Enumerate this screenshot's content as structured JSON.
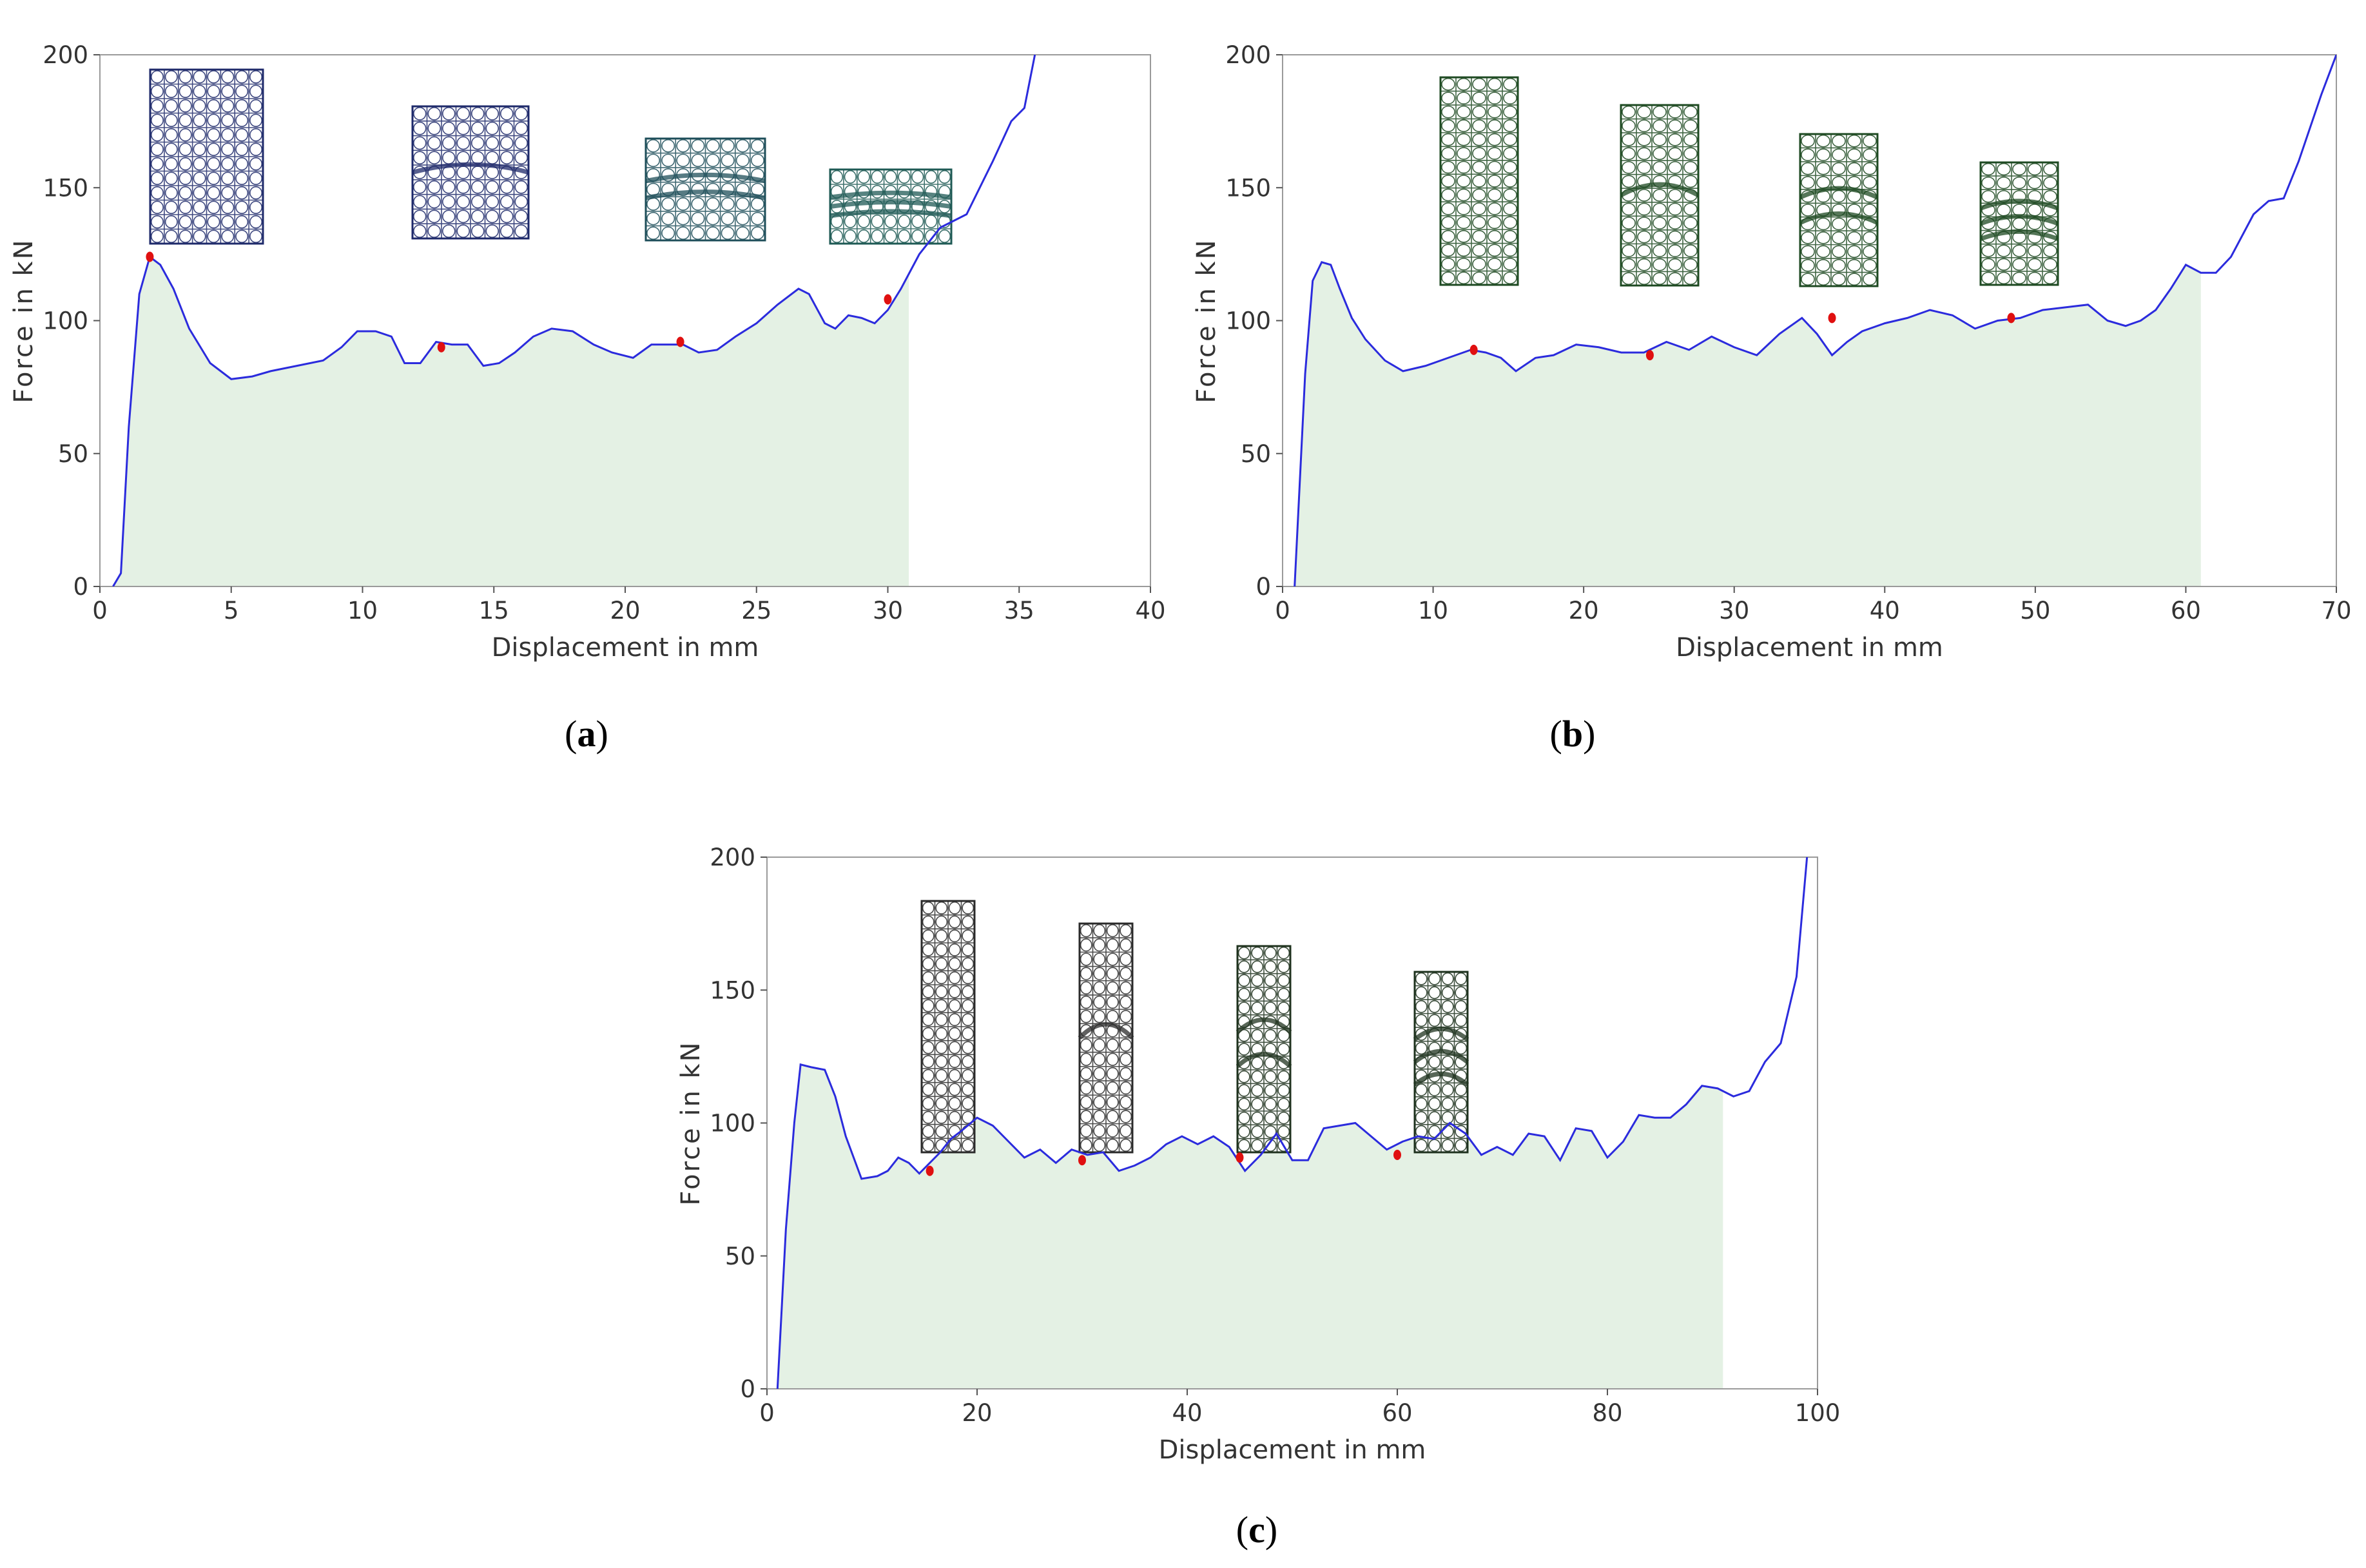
{
  "chart_data": [
    {
      "type": "area",
      "panel_label": "a",
      "xlabel": "Displacement in mm",
      "ylabel": "Force in kN",
      "xlim": [
        0,
        40
      ],
      "ylim": [
        0,
        200
      ],
      "xticks": [
        0,
        5,
        10,
        15,
        20,
        25,
        30,
        35,
        40
      ],
      "yticks": [
        0,
        50,
        100,
        150,
        200
      ],
      "fill_until_x": 30.8,
      "series": [
        {
          "name": "Force",
          "color": "#2b2bdd",
          "fill": "#e4f1e4",
          "x": [
            0.5,
            0.8,
            1.1,
            1.5,
            1.9,
            2.3,
            2.8,
            3.4,
            4.2,
            5.0,
            5.8,
            6.5,
            7.5,
            8.5,
            9.2,
            9.8,
            10.5,
            11.1,
            11.6,
            12.2,
            12.8,
            13.4,
            14.0,
            14.6,
            15.2,
            15.8,
            16.5,
            17.2,
            18.0,
            18.8,
            19.5,
            20.3,
            21.0,
            21.6,
            22.2,
            22.8,
            23.5,
            24.2,
            25.0,
            25.8,
            26.6,
            27.0,
            27.6,
            28.0,
            28.5,
            29.0,
            29.5,
            30.0,
            30.5,
            31.2,
            32.0,
            33.0,
            34.0,
            34.7,
            35.2,
            35.6
          ],
          "y": [
            0,
            5,
            60,
            110,
            124,
            121,
            112,
            97,
            84,
            78,
            79,
            81,
            83,
            85,
            90,
            96,
            96,
            94,
            84,
            84,
            92,
            91,
            91,
            83,
            84,
            88,
            94,
            97,
            96,
            91,
            88,
            86,
            91,
            91,
            91,
            88,
            89,
            94,
            99,
            106,
            112,
            110,
            99,
            97,
            102,
            101,
            99,
            104,
            112,
            125,
            135,
            140,
            160,
            175,
            180,
            200
          ],
          "markers": {
            "x": [
              1.9,
              13.0,
              22.1,
              30.0
            ],
            "y": [
              124,
              90,
              92,
              108
            ],
            "color": "#e01010"
          }
        }
      ],
      "insets": [
        {
          "name": "lattice-stage-1",
          "stroke": "#1f2a6b"
        },
        {
          "name": "lattice-stage-2",
          "stroke": "#1f2a6b"
        },
        {
          "name": "lattice-stage-3",
          "stroke": "#1f4f5a"
        },
        {
          "name": "lattice-stage-4",
          "stroke": "#1f5a55"
        }
      ]
    },
    {
      "type": "area",
      "panel_label": "b",
      "xlabel": "Displacement in mm",
      "ylabel": "Force in kN",
      "xlim": [
        0,
        70
      ],
      "ylim": [
        0,
        200
      ],
      "xticks": [
        0,
        10,
        20,
        30,
        40,
        50,
        60,
        70
      ],
      "yticks": [
        0,
        50,
        100,
        150,
        200
      ],
      "fill_until_x": 61,
      "series": [
        {
          "name": "Force",
          "color": "#2b2bdd",
          "fill": "#e4f1e4",
          "x": [
            0.8,
            1.5,
            2.0,
            2.6,
            3.2,
            3.8,
            4.6,
            5.5,
            6.8,
            8.0,
            9.5,
            11.0,
            12.5,
            13.5,
            14.5,
            15.5,
            16.8,
            18.0,
            19.5,
            21.0,
            22.5,
            24.0,
            25.5,
            27.0,
            28.5,
            30.0,
            31.5,
            33.0,
            34.5,
            35.5,
            36.5,
            37.5,
            38.5,
            40.0,
            41.5,
            43.0,
            44.5,
            46.0,
            47.5,
            49.0,
            50.5,
            52.0,
            53.5,
            54.8,
            56.0,
            57.0,
            58.0,
            59.0,
            60.0,
            61.0,
            62.0,
            63.0,
            64.5,
            65.5,
            66.5,
            67.5,
            69.0,
            70.0
          ],
          "y": [
            0,
            80,
            115,
            122,
            121,
            112,
            101,
            93,
            85,
            81,
            83,
            86,
            89,
            88,
            86,
            81,
            86,
            87,
            91,
            90,
            88,
            88,
            92,
            89,
            94,
            90,
            87,
            95,
            101,
            95,
            87,
            92,
            96,
            99,
            101,
            104,
            102,
            97,
            100,
            101,
            104,
            105,
            106,
            100,
            98,
            100,
            104,
            112,
            121,
            118,
            118,
            124,
            140,
            145,
            146,
            160,
            185,
            200
          ],
          "markers": {
            "x": [
              12.7,
              24.4,
              36.5,
              48.4
            ],
            "y": [
              89,
              87,
              101,
              101
            ],
            "color": "#e01010"
          }
        }
      ],
      "insets": [
        {
          "name": "lattice-stage-1",
          "stroke": "#1e4a22"
        },
        {
          "name": "lattice-stage-2",
          "stroke": "#1e4a22"
        },
        {
          "name": "lattice-stage-3",
          "stroke": "#1e4a22"
        },
        {
          "name": "lattice-stage-4",
          "stroke": "#1e4a22"
        }
      ]
    },
    {
      "type": "area",
      "panel_label": "c",
      "xlabel": "Displacement in mm",
      "ylabel": "Force in kN",
      "xlim": [
        0,
        100
      ],
      "ylim": [
        0,
        200
      ],
      "xticks": [
        0,
        20,
        40,
        60,
        80,
        100
      ],
      "yticks": [
        0,
        50,
        100,
        150,
        200
      ],
      "fill_until_x": 91,
      "series": [
        {
          "name": "Force",
          "color": "#2b2bdd",
          "fill": "#e4f1e4",
          "x": [
            1.0,
            1.8,
            2.6,
            3.2,
            4.2,
            5.5,
            6.5,
            7.5,
            9.0,
            10.5,
            11.5,
            12.5,
            13.5,
            14.5,
            15.5,
            16.5,
            17.5,
            18.5,
            20.0,
            21.5,
            23.0,
            24.5,
            26.0,
            27.5,
            29.0,
            30.5,
            32.0,
            33.5,
            35.0,
            36.5,
            38.0,
            39.5,
            41.0,
            42.5,
            44.0,
            45.5,
            47.0,
            48.5,
            50.0,
            51.5,
            53.0,
            54.5,
            56.0,
            57.5,
            59.0,
            60.5,
            62.0,
            63.5,
            65.0,
            66.5,
            68.0,
            69.5,
            71.0,
            72.5,
            74.0,
            75.5,
            77.0,
            78.5,
            80.0,
            81.5,
            83.0,
            84.5,
            86.0,
            87.5,
            89.0,
            90.5,
            92.0,
            93.5,
            95.0,
            96.5,
            98.0,
            99.0
          ],
          "y": [
            0,
            60,
            100,
            122,
            121,
            120,
            110,
            95,
            79,
            80,
            82,
            87,
            85,
            81,
            85,
            89,
            94,
            97,
            102,
            99,
            93,
            87,
            90,
            85,
            90,
            88,
            89,
            82,
            84,
            87,
            92,
            95,
            92,
            95,
            91,
            82,
            88,
            96,
            86,
            86,
            98,
            99,
            100,
            95,
            90,
            93,
            95,
            94,
            100,
            96,
            88,
            91,
            88,
            96,
            95,
            86,
            98,
            97,
            87,
            93,
            103,
            102,
            102,
            107,
            114,
            113,
            110,
            112,
            123,
            130,
            155,
            200
          ],
          "markers": {
            "x": [
              15.5,
              30.0,
              45.0,
              60.0
            ],
            "y": [
              82,
              86,
              87,
              88
            ],
            "color": "#e01010"
          }
        }
      ],
      "insets": [
        {
          "name": "lattice-stage-1",
          "stroke": "#2b2b2b"
        },
        {
          "name": "lattice-stage-2",
          "stroke": "#2b2b2b"
        },
        {
          "name": "lattice-stage-3",
          "stroke": "#20331f"
        },
        {
          "name": "lattice-stage-4",
          "stroke": "#1f331f"
        }
      ]
    }
  ]
}
